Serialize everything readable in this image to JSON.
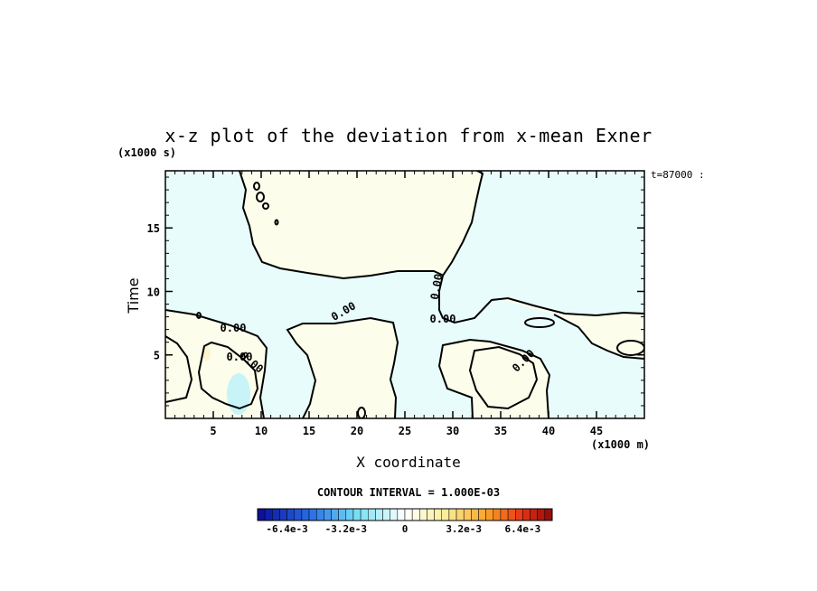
{
  "chart_data": {
    "type": "contour",
    "title": "x-z plot of the deviation from x-mean Exner",
    "xlabel": "X coordinate",
    "ylabel": "Time",
    "x_unit": "(x1000 m)",
    "y_unit": "(x1000 s)",
    "timestamp": "t=87000 :",
    "xlim": [
      0,
      50
    ],
    "ylim": [
      0,
      19.5
    ],
    "x_ticks": [
      5,
      10,
      15,
      20,
      25,
      30,
      35,
      40,
      45
    ],
    "y_ticks": [
      5,
      10,
      15
    ],
    "contour_interval": "CONTOUR INTERVAL = 1.000E-03",
    "contour_labels": [
      "0.00",
      "0.00",
      "0.00",
      "0.00",
      "0.00",
      "0.00",
      "0.00"
    ],
    "colorbar": {
      "min": -0.008,
      "max": 0.008,
      "n_colors": 40,
      "tick_labels": [
        "-6.4e-3",
        "-3.2e-3",
        "0",
        "3.2e-3",
        "6.4e-3"
      ],
      "tick_values": [
        -0.0064,
        -0.0032,
        0,
        0.0032,
        0.0064
      ]
    },
    "field_colors": {
      "negative": "#e8fcfc",
      "positive": "#fdfdec",
      "negative_strong": "#c8f4f8",
      "positive_strong": "#fcf4cc"
    }
  }
}
